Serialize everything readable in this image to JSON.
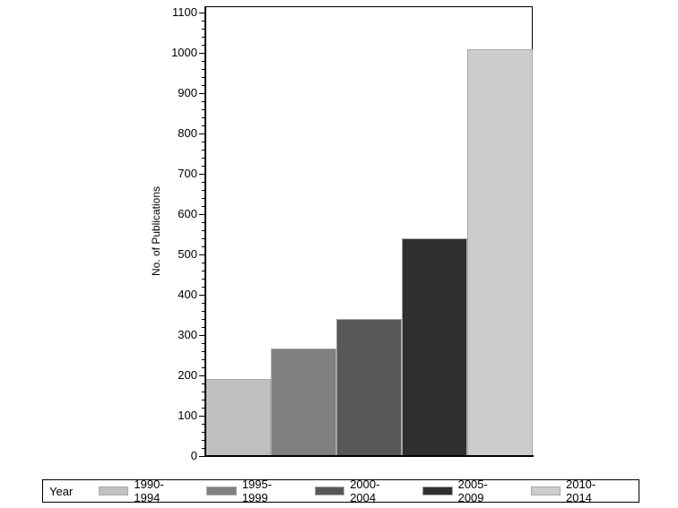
{
  "chart_data": {
    "type": "bar",
    "title": "",
    "xlabel": "",
    "ylabel": "No. of Publications",
    "ylim": [
      0,
      1100
    ],
    "yticks": [
      0,
      100,
      200,
      300,
      400,
      500,
      600,
      700,
      800,
      900,
      1000,
      1100
    ],
    "minor_ticks_per_major": 4,
    "grid": false,
    "legend_position": "bottom",
    "legend_title": "Year",
    "categories": [
      "1990-1994",
      "1995-1999",
      "2000-2004",
      "2005-2009",
      "2010-2014"
    ],
    "values": [
      191,
      266,
      340,
      541,
      1008
    ],
    "colors": [
      "#c0c0c0",
      "#808080",
      "#585858",
      "#303030",
      "#cccccc"
    ]
  },
  "axis": {
    "ylabel": "No. of Publications",
    "ticks": [
      "0",
      "100",
      "200",
      "300",
      "400",
      "500",
      "600",
      "700",
      "800",
      "900",
      "1000",
      "1100"
    ]
  },
  "legend": {
    "title": "Year",
    "items": [
      {
        "label": "1990-1994",
        "color": "#c0c0c0"
      },
      {
        "label": "1995-1999",
        "color": "#808080"
      },
      {
        "label": "2000-2004",
        "color": "#585858"
      },
      {
        "label": "2005-2009",
        "color": "#303030"
      },
      {
        "label": "2010-2014",
        "color": "#cccccc"
      }
    ]
  }
}
